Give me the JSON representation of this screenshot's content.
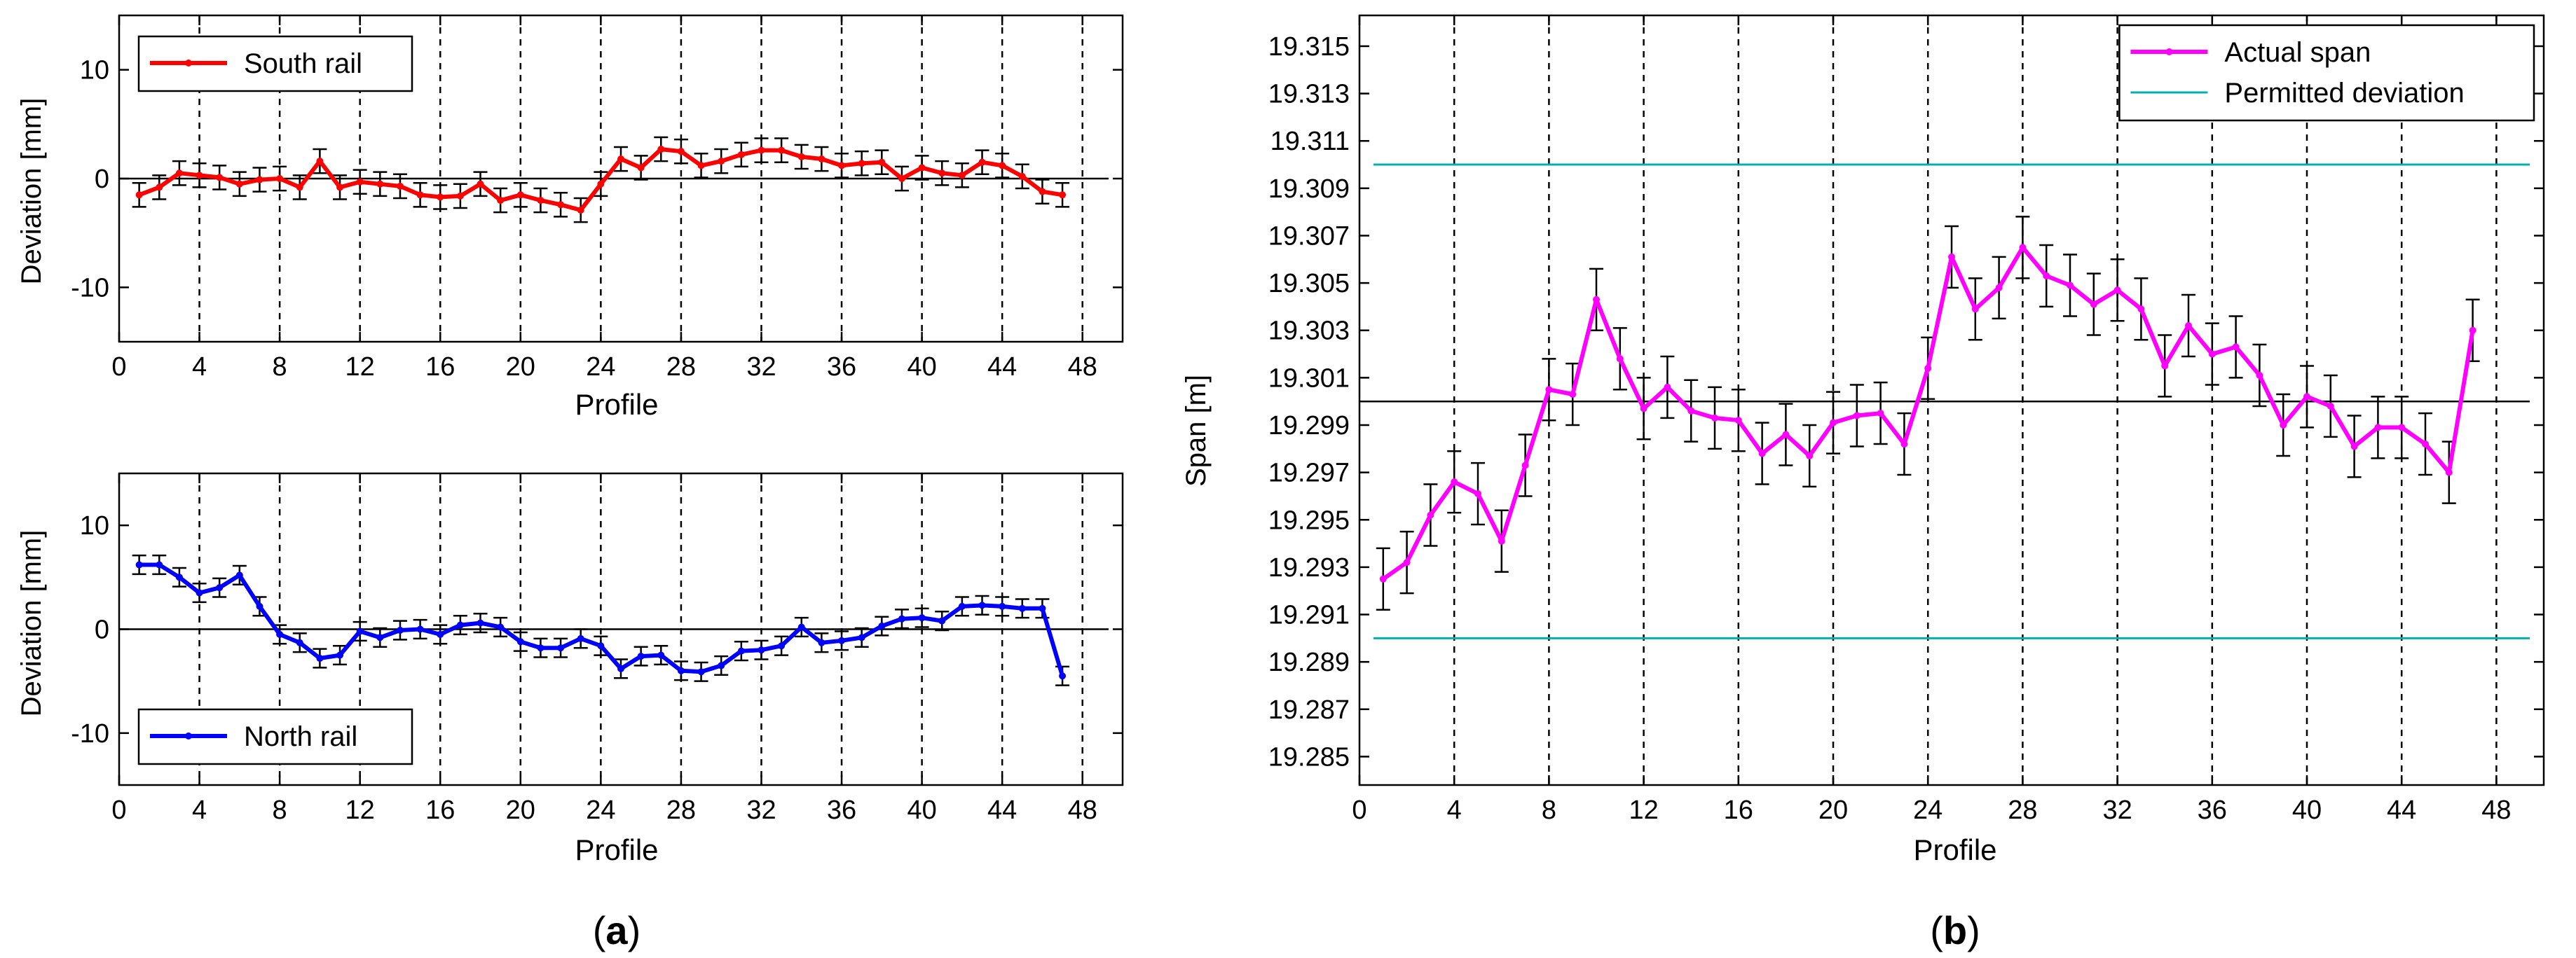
{
  "colors": {
    "south": "#ff0000",
    "north": "#0000ff",
    "span": "#ff00ff",
    "permitted": "#00b0b0",
    "axis": "#000000",
    "grid": "#000000",
    "errorbar": "#000000",
    "background": "#ffffff"
  },
  "panel_labels": {
    "a": "a",
    "b": "b"
  },
  "chart_data": [
    {
      "id": "south",
      "type": "line",
      "title": "",
      "xlabel": "Profile",
      "ylabel": "Deviation [mm]",
      "xlim": [
        0,
        50
      ],
      "ylim": [
        -15,
        15
      ],
      "xticks": [
        0,
        4,
        8,
        12,
        16,
        20,
        24,
        28,
        32,
        36,
        40,
        44,
        48
      ],
      "yticks": [
        -10,
        0,
        10
      ],
      "grid": "vertical dashed at x ticks",
      "reference_line": 0,
      "legend": {
        "position": "top-left",
        "entries": [
          "South rail"
        ]
      },
      "series": [
        {
          "name": "South rail",
          "color": "#ff0000",
          "x": [
            1,
            2,
            3,
            4,
            5,
            6,
            7,
            8,
            9,
            10,
            11,
            12,
            13,
            14,
            15,
            16,
            17,
            18,
            19,
            20,
            21,
            22,
            23,
            24,
            25,
            26,
            27,
            28,
            29,
            30,
            31,
            32,
            33,
            34,
            35,
            36,
            37,
            38,
            39,
            40,
            41,
            42,
            43,
            44,
            45,
            46,
            47
          ],
          "y": [
            -1.5,
            -0.8,
            0.5,
            0.3,
            0.1,
            -0.5,
            -0.1,
            0.0,
            -0.8,
            1.6,
            -0.8,
            -0.3,
            -0.5,
            -0.7,
            -1.5,
            -1.7,
            -1.6,
            -0.5,
            -2.0,
            -1.5,
            -2.0,
            -2.4,
            -2.9,
            -0.5,
            1.8,
            1.0,
            2.7,
            2.5,
            1.2,
            1.6,
            2.2,
            2.6,
            2.6,
            2.0,
            1.8,
            1.2,
            1.4,
            1.5,
            0.0,
            1.0,
            0.5,
            0.3,
            1.5,
            1.2,
            0.2,
            -1.2,
            -1.5
          ],
          "error": 1.1
        }
      ]
    },
    {
      "id": "north",
      "type": "line",
      "title": "",
      "xlabel": "Profile",
      "ylabel": "Deviation [mm]",
      "xlim": [
        0,
        50
      ],
      "ylim": [
        -15,
        15
      ],
      "xticks": [
        0,
        4,
        8,
        12,
        16,
        20,
        24,
        28,
        32,
        36,
        40,
        44,
        48
      ],
      "yticks": [
        -10,
        0,
        10
      ],
      "grid": "vertical dashed at x ticks",
      "reference_line": 0,
      "legend": {
        "position": "bottom-left",
        "entries": [
          "North rail"
        ]
      },
      "series": [
        {
          "name": "North rail",
          "color": "#0000ff",
          "x": [
            1,
            2,
            3,
            4,
            5,
            6,
            7,
            8,
            9,
            10,
            11,
            12,
            13,
            14,
            15,
            16,
            17,
            18,
            19,
            20,
            21,
            22,
            23,
            24,
            25,
            26,
            27,
            28,
            29,
            30,
            31,
            32,
            33,
            34,
            35,
            36,
            37,
            38,
            39,
            40,
            41,
            42,
            43,
            44,
            45,
            46,
            47
          ],
          "y": [
            6.2,
            6.2,
            5.0,
            3.5,
            4.0,
            5.2,
            2.2,
            -0.5,
            -1.3,
            -2.8,
            -2.5,
            -0.2,
            -0.8,
            -0.1,
            0.0,
            -0.5,
            0.4,
            0.6,
            0.2,
            -1.2,
            -1.8,
            -1.8,
            -0.9,
            -1.6,
            -3.8,
            -2.6,
            -2.5,
            -4.0,
            -4.1,
            -3.5,
            -2.1,
            -2.0,
            -1.6,
            0.2,
            -1.3,
            -1.1,
            -0.8,
            0.3,
            1.0,
            1.1,
            0.8,
            2.2,
            2.3,
            2.2,
            2.0,
            2.0,
            -4.5
          ],
          "error": 0.9
        }
      ]
    },
    {
      "id": "span",
      "type": "line",
      "title": "",
      "xlabel": "Profile",
      "ylabel": "Span [m]",
      "xlim": [
        0,
        50
      ],
      "ylim": [
        19.2838,
        19.3163
      ],
      "xticks": [
        0,
        4,
        8,
        12,
        16,
        20,
        24,
        28,
        32,
        36,
        40,
        44,
        48
      ],
      "yticks": [
        19.285,
        19.287,
        19.289,
        19.291,
        19.293,
        19.295,
        19.297,
        19.299,
        19.301,
        19.303,
        19.305,
        19.307,
        19.309,
        19.311,
        19.313,
        19.315
      ],
      "ytick_labels": [
        "19.285",
        "19.287",
        "19.289",
        "19.291",
        "19.293",
        "19.295",
        "19.297",
        "19.299",
        "19.301",
        "19.303",
        "19.305",
        "19.307",
        "19.309",
        "19.311",
        "19.313",
        "19.315"
      ],
      "grid": "vertical dashed at x ticks",
      "reference_line": 19.3,
      "permitted_deviation": [
        19.29,
        19.31
      ],
      "legend": {
        "position": "top-right",
        "entries": [
          "Actual span",
          "Permitted deviation"
        ]
      },
      "series": [
        {
          "name": "Actual span",
          "color": "#ff00ff",
          "x": [
            1,
            2,
            3,
            4,
            5,
            6,
            7,
            8,
            9,
            10,
            11,
            12,
            13,
            14,
            15,
            16,
            17,
            18,
            19,
            20,
            21,
            22,
            23,
            24,
            25,
            26,
            27,
            28,
            29,
            30,
            31,
            32,
            33,
            34,
            35,
            36,
            37,
            38,
            39,
            40,
            41,
            42,
            43,
            44,
            45,
            46,
            47
          ],
          "y": [
            19.2925,
            19.2932,
            19.2952,
            19.2966,
            19.2961,
            19.2941,
            19.2973,
            19.3005,
            19.3003,
            19.3043,
            19.3018,
            19.2997,
            19.3006,
            19.2996,
            19.2993,
            19.2992,
            19.2978,
            19.2986,
            19.2977,
            19.2991,
            19.2994,
            19.2995,
            19.2982,
            19.3014,
            19.3061,
            19.3039,
            19.3048,
            19.3065,
            19.3053,
            19.3049,
            19.3041,
            19.3047,
            19.3039,
            19.3015,
            19.3032,
            19.302,
            19.3023,
            19.3011,
            19.299,
            19.3002,
            19.2998,
            19.2981,
            19.2989,
            19.2989,
            19.2982,
            19.297,
            19.303
          ],
          "error": 0.0013
        },
        {
          "name": "Permitted deviation",
          "color": "#00b0b0",
          "y_lines": [
            19.29,
            19.31
          ]
        }
      ]
    }
  ]
}
